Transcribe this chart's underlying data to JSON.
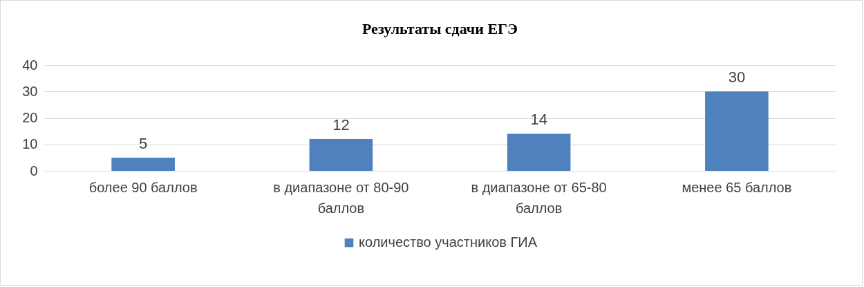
{
  "chart_data": {
    "type": "bar",
    "title": "Результаты сдачи ЕГЭ",
    "categories": [
      "более 90 баллов",
      "в диапазоне от 80-90 баллов",
      "в диапазоне от 65-80 баллов",
      "менее 65 баллов"
    ],
    "series": [
      {
        "name": "количество участников ГИА",
        "color": "#4f81bd",
        "values": [
          5,
          12,
          14,
          30
        ]
      }
    ],
    "ylim": [
      0,
      40
    ],
    "yticks": [
      0,
      10,
      20,
      30,
      40
    ],
    "grid": "y",
    "legend": "bottom",
    "data_labels": true
  }
}
